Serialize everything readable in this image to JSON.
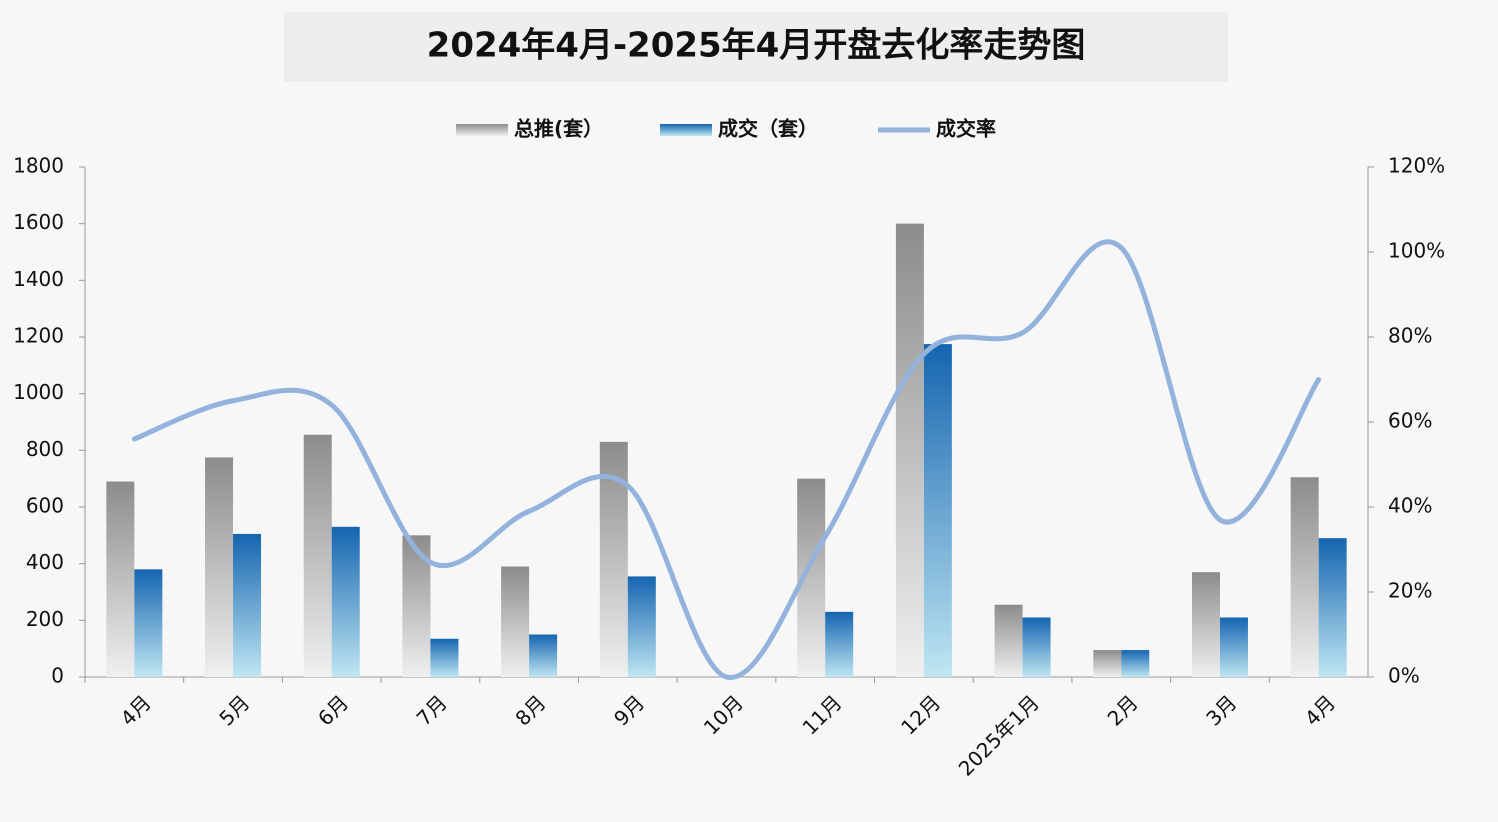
{
  "chart_data": {
    "type": "bar",
    "title": "2024年4月-2025年4月开盘去化率走势图",
    "categories": [
      "4月",
      "5月",
      "6月",
      "7月",
      "8月",
      "9月",
      "10月",
      "11月",
      "12月",
      "2025年1月",
      "2月",
      "3月",
      "4月"
    ],
    "series": [
      {
        "name": "总推(套）",
        "color": "#9a9a9a",
        "values": [
          690,
          775,
          855,
          500,
          390,
          830,
          0,
          700,
          1600,
          255,
          95,
          370,
          705
        ]
      },
      {
        "name": "成交（套）",
        "color": "#1a6fba",
        "values": [
          380,
          505,
          530,
          135,
          150,
          355,
          0,
          230,
          1175,
          210,
          95,
          210,
          490
        ]
      },
      {
        "name": "成交率",
        "color": "#93b3dd",
        "type": "line",
        "axis": "y2",
        "values": [
          56,
          65,
          64,
          27,
          39,
          45,
          0,
          33,
          76,
          81,
          101,
          37,
          70
        ]
      }
    ],
    "ylim": [
      0,
      1800
    ],
    "yticks": [
      0,
      200,
      400,
      600,
      800,
      1000,
      1200,
      1400,
      1600,
      1800
    ],
    "y2lim": [
      0,
      120
    ],
    "y2ticks": [
      {
        "value": 0,
        "label": "0%"
      },
      {
        "value": 20,
        "label": "20%"
      },
      {
        "value": 40,
        "label": "40%"
      },
      {
        "value": 60,
        "label": "60%"
      },
      {
        "value": 80,
        "label": "80%"
      },
      {
        "value": 100,
        "label": "100%"
      },
      {
        "value": 120,
        "label": "120%"
      }
    ],
    "grid": false,
    "legend": "top"
  }
}
